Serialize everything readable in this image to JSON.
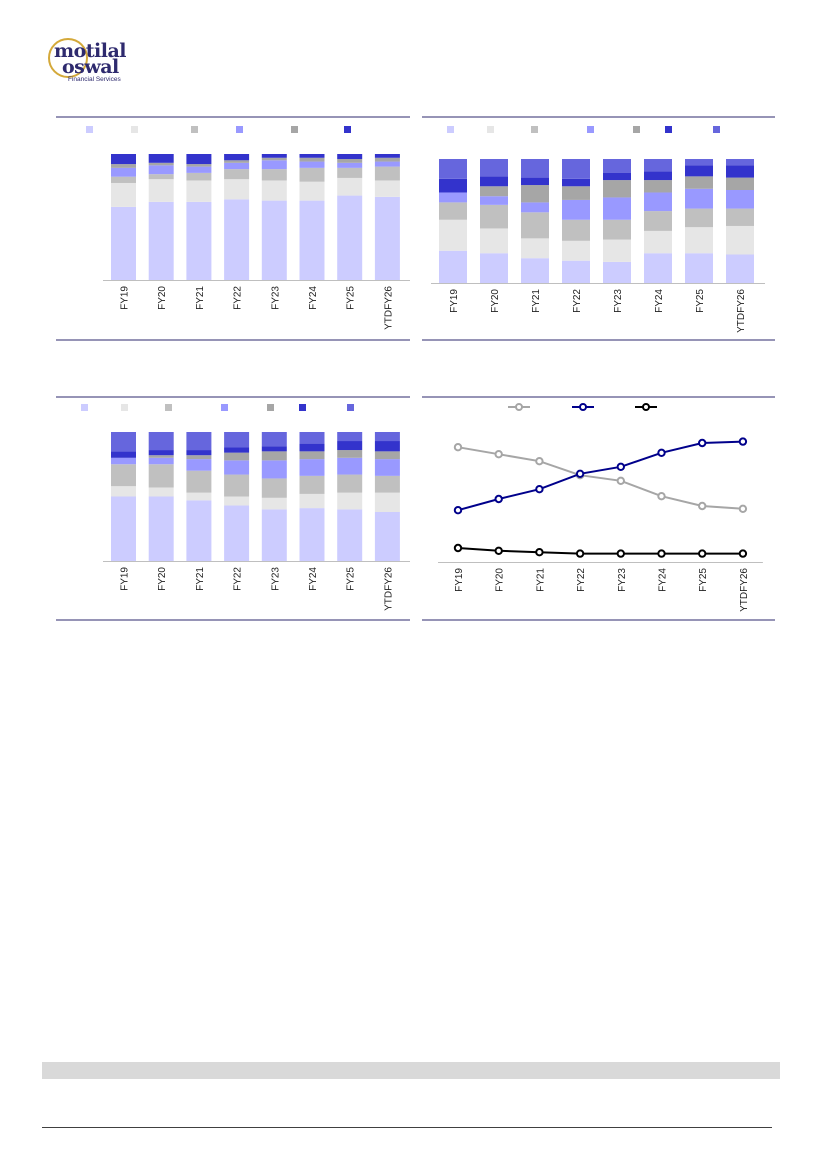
{
  "brand": {
    "line1": "motilal",
    "line2": "oswal",
    "line3": "Financial Services"
  },
  "colors": {
    "s1": "#ccccff",
    "s2": "#e6e6e6",
    "s3": "#c0c0c0",
    "s4": "#9999ff",
    "s5": "#a6a6a6",
    "s6": "#3333cc",
    "s7": "#6666dd",
    "frame": "#2e2a6e",
    "line_gray": "#a6a6a6",
    "line_navy": "#00008b",
    "line_black": "#000000"
  },
  "charts": [
    {
      "type": "bar",
      "stacked": true,
      "categories": [
        "FY19",
        "FY20",
        "FY21",
        "FY22",
        "FY23",
        "FY24",
        "FY25",
        "YTDFY26"
      ],
      "series": [
        {
          "values": [
            58,
            62,
            62,
            64,
            63,
            63,
            67,
            66
          ]
        },
        {
          "values": [
            19,
            18,
            17,
            16,
            16,
            15,
            14,
            13
          ]
        },
        {
          "values": [
            5,
            4,
            6,
            8,
            9,
            11,
            8,
            11
          ]
        },
        {
          "values": [
            7,
            7,
            5,
            5,
            7,
            5,
            4,
            4
          ]
        },
        {
          "values": [
            3,
            2,
            2,
            2,
            2,
            3,
            3,
            3
          ]
        },
        {
          "values": [
            8,
            7,
            8,
            5,
            3,
            3,
            4,
            3
          ]
        }
      ]
    },
    {
      "type": "bar",
      "stacked": true,
      "categories": [
        "FY19",
        "FY20",
        "FY21",
        "FY22",
        "FY23",
        "FY24",
        "FY25",
        "YTDFY26"
      ],
      "series": [
        {
          "values": [
            26,
            24,
            20,
            18,
            17,
            24,
            24,
            23
          ]
        },
        {
          "values": [
            25,
            20,
            16,
            16,
            18,
            18,
            21,
            23
          ]
        },
        {
          "values": [
            14,
            19,
            21,
            17,
            16,
            16,
            15,
            14
          ]
        },
        {
          "values": [
            8,
            7,
            8,
            16,
            18,
            15,
            16,
            15
          ]
        },
        {
          "values": [
            0,
            8,
            14,
            11,
            14,
            10,
            10,
            10
          ]
        },
        {
          "values": [
            11,
            8,
            6,
            6,
            6,
            7,
            9,
            10
          ]
        },
        {
          "values": [
            16,
            14,
            15,
            16,
            11,
            10,
            5,
            5
          ]
        }
      ]
    },
    {
      "type": "bar",
      "stacked": true,
      "categories": [
        "FY19",
        "FY20",
        "FY21",
        "FY22",
        "FY23",
        "FY24",
        "FY25",
        "YTDFY26"
      ],
      "series": [
        {
          "values": [
            50,
            50,
            47,
            43,
            40,
            41,
            40,
            38
          ]
        },
        {
          "values": [
            8,
            7,
            6,
            7,
            9,
            11,
            13,
            15
          ]
        },
        {
          "values": [
            17,
            18,
            17,
            17,
            15,
            14,
            14,
            13
          ]
        },
        {
          "values": [
            5,
            5,
            9,
            11,
            14,
            13,
            13,
            13
          ]
        },
        {
          "values": [
            0,
            2,
            3,
            6,
            7,
            6,
            6,
            6
          ]
        },
        {
          "values": [
            5,
            4,
            4,
            4,
            4,
            6,
            7,
            8
          ]
        },
        {
          "values": [
            15,
            14,
            14,
            12,
            11,
            9,
            7,
            7
          ]
        }
      ]
    },
    {
      "type": "line",
      "categories": [
        "FY19",
        "FY20",
        "FY21",
        "FY22",
        "FY23",
        "FY24",
        "FY25",
        "YTDFY26"
      ],
      "ylim": [
        0,
        100
      ],
      "series": [
        {
          "color_key": "line_gray",
          "values": [
            82,
            77,
            72,
            62,
            58,
            47,
            40,
            38
          ]
        },
        {
          "color_key": "line_navy",
          "values": [
            37,
            45,
            52,
            63,
            68,
            78,
            85,
            86
          ]
        },
        {
          "color_key": "line_black",
          "values": [
            10,
            8,
            7,
            6,
            6,
            6,
            6,
            6
          ]
        }
      ]
    }
  ]
}
